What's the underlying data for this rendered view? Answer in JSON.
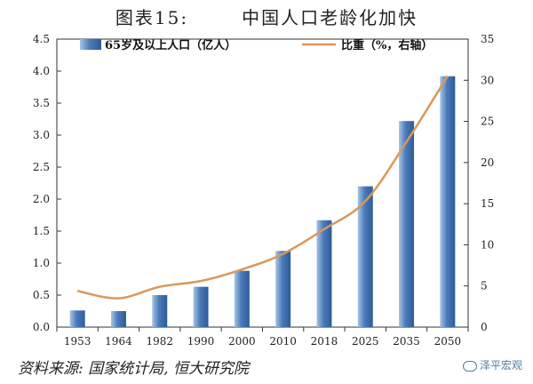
{
  "title": {
    "fig": "图表15:",
    "text": "中国人口老龄化加快"
  },
  "source": "资料来源: 国家统计局, 恒大研究院",
  "watermark": "泽平宏观",
  "chart_data": {
    "type": "bar",
    "categories": [
      "1953",
      "1964",
      "1982",
      "1990",
      "2000",
      "2010",
      "2018",
      "2025",
      "2035",
      "2050"
    ],
    "series": [
      {
        "name": "65岁及以上人口（亿人）",
        "type": "bar",
        "axis": "left",
        "values": [
          0.26,
          0.25,
          0.5,
          0.63,
          0.88,
          1.19,
          1.67,
          2.2,
          3.22,
          3.92
        ]
      },
      {
        "name": "比重（%，右轴）",
        "type": "line",
        "axis": "right",
        "values": [
          4.4,
          3.5,
          4.9,
          5.6,
          7.0,
          8.9,
          11.9,
          15.3,
          22.5,
          30.5
        ]
      }
    ],
    "ylim": [
      0,
      4.5
    ],
    "yticks": [
      "0.0",
      "0.5",
      "1.0",
      "1.5",
      "2.0",
      "2.5",
      "3.0",
      "3.5",
      "4.0",
      "4.5"
    ],
    "y2lim": [
      0,
      35
    ],
    "y2ticks": [
      "0",
      "5",
      "10",
      "15",
      "20",
      "25",
      "30",
      "35"
    ],
    "colors": {
      "bar": "#3f6fae",
      "bar_light": "#a9c4e6",
      "line": "#d9985a"
    }
  }
}
